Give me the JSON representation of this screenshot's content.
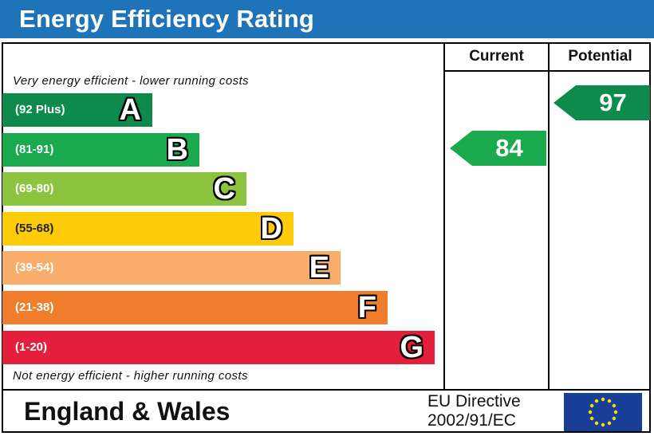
{
  "header": {
    "title": "Energy Efficiency Rating",
    "color": "#1f73b8"
  },
  "columns": {
    "current": "Current",
    "potential": "Potential"
  },
  "notes": {
    "top": "Very energy efficient - lower running costs",
    "bottom": "Not energy efficient - higher running costs"
  },
  "footer": {
    "region": "England & Wales",
    "directive_line1": "EU Directive",
    "directive_line2": "2002/91/EC",
    "flag_icon": "eu-flag-icon"
  },
  "chart_data": {
    "type": "bar",
    "categories": [
      "A",
      "B",
      "C",
      "D",
      "E",
      "F",
      "G"
    ],
    "ranges": [
      "(92 Plus)",
      "(81-91)",
      "(69-80)",
      "(55-68)",
      "(39-54)",
      "(21-38)",
      "(1-20)"
    ],
    "colors": [
      "#0e8a4d",
      "#1aa94c",
      "#8cc440",
      "#fecb0b",
      "#f9ad6c",
      "#ef7d2b",
      "#e41f3b"
    ],
    "current": 84,
    "current_band": "B",
    "potential": 97,
    "potential_band": "A"
  }
}
